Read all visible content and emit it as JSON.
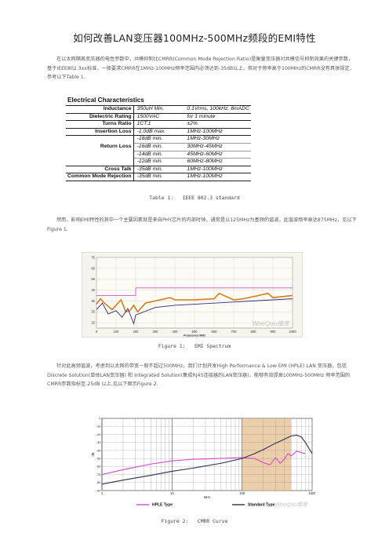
{
  "title": "如何改善LAN变压器100MHz-500MHz频段的EMI特性",
  "paragraphs": [
    "在以太网隔离变压器的电性参数中，共模抑制比CMRR(Common Mode Rejection Ratio)是衡量变压器对共模信号抑制效果的关键参数，基于IEEE802.3xx标准，一般要求CMRR在1MHz-100MHz频率范围内必须达到-35dB以上，但对于频率高于100MHz的CMRR没有具体规定，参考以下Table 1.",
    "然而，影响EMI特性的其中一个主要因素就是来自PHY芯片的内部时钟，通常是以125MHz为基频的谐波，此谐波频率高达875MHz，见以下Figure 1.",
    "针对此高频谐波，考虑到以太网的带宽一般不超过500MHz，我们计划开发High Performance & Low EMI (HPLE) LAN 变压器，包括Discrete Solution(单体LAN变压器) 和 Integrated Solution(集成RJ45连接器的LAN变压器)，能够有效提高100MHz-500MHz 频率范围的CMRR参数指标至-25dB 以上,见以下图示Figure 2."
  ],
  "table1": {
    "heading": "Electrical Characteristics",
    "rows": [
      {
        "label": "Inductance",
        "min": "350uH Min.",
        "cond": "0.1Vrms, 100kHz, 8mADC"
      },
      {
        "label": "Dielectric Rating",
        "min": "1500VAC",
        "cond": "for 1 minute"
      },
      {
        "label": "Turns Ratio",
        "min": "1CT:1",
        "cond": "±2%"
      },
      {
        "label": "Insertion Loss",
        "min": "-1.0dB max.",
        "cond": "1MHz-100MHz"
      },
      {
        "label": "",
        "min": "-18dB min.",
        "cond": "1MHz-30MHz"
      },
      {
        "label": "Return Loss",
        "min": "-16dB min.",
        "cond": "30MHz-45MHz"
      },
      {
        "label": "",
        "min": "-14dB min.",
        "cond": "45MHz-60MHz"
      },
      {
        "label": "",
        "min": "-12dB min.",
        "cond": "60MHz-80MHz"
      },
      {
        "label": "Cross Talk",
        "min": "-35dB min.",
        "cond": "1MHz-100MHz"
      },
      {
        "label": "Common Mode Rejection",
        "min": "-35dB min.",
        "cond": "1MHz-100MHz"
      }
    ],
    "caption": "Table 1:   IEEE 802.3 standard"
  },
  "figure1": {
    "caption": "Figure 1:   EMI Spectrum",
    "watermark": "WeeQoo维库",
    "chart_data": {
      "type": "line",
      "xlabel": "Frequency MHz",
      "x_ticks": [
        "0",
        "100",
        "200",
        "300",
        "400",
        "500",
        "600",
        "700",
        "800",
        "900",
        "1000"
      ],
      "y_ticks": [
        "75",
        "65",
        "55",
        "45",
        "35",
        "25",
        "15"
      ],
      "xlim": [
        0,
        1000
      ],
      "ylim": [
        10,
        75
      ],
      "series": [
        {
          "color": "#cc55cc",
          "x": [
            0,
            200,
            200,
            1000
          ],
          "y": [
            40,
            40,
            47,
            47
          ]
        },
        {
          "color": "#d97a1a",
          "x": [
            0,
            20,
            40,
            60,
            80,
            100,
            125,
            150,
            170,
            190,
            210,
            250,
            300,
            375,
            400,
            500,
            600,
            625,
            700,
            750,
            800,
            875,
            900,
            950,
            1000
          ],
          "y": [
            32,
            37,
            33,
            30,
            27,
            31,
            36,
            25,
            26,
            31,
            25,
            33,
            35,
            38,
            36,
            36,
            37,
            42,
            36,
            37,
            39,
            42,
            38,
            39,
            40
          ]
        },
        {
          "color": "#2d2d7a",
          "x": [
            0,
            30,
            60,
            100,
            130,
            160,
            190,
            200,
            300,
            400,
            500,
            600,
            700,
            800,
            900,
            1000
          ],
          "y": [
            27,
            33,
            23,
            26,
            20,
            28,
            14,
            22,
            29,
            31,
            32,
            33,
            34,
            35,
            36,
            37
          ]
        }
      ]
    }
  },
  "figure2": {
    "caption": "Figure 2:   CMRR Curve",
    "watermark": "WeeQoo维库",
    "chart_data": {
      "type": "line",
      "xlabel": "MHz",
      "ylabel": "dB",
      "x_scale": "log",
      "xlim": [
        1,
        1000
      ],
      "ylim": [
        -90,
        0
      ],
      "x_ticks": [
        "1",
        "10",
        "100",
        "1000"
      ],
      "y_ticks": [
        "0",
        "-10",
        "-20",
        "-30",
        "-40",
        "-50",
        "-60",
        "-70",
        "-80",
        "-90"
      ],
      "highlight_band": [
        100,
        500
      ],
      "legend": [
        "HPLE Type",
        "Standard Type"
      ],
      "series": [
        {
          "name": "HPLE Type",
          "color": "#dd44cc",
          "x": [
            1,
            2,
            5,
            10,
            20,
            50,
            100,
            150,
            200,
            250,
            300,
            350,
            400,
            450,
            500,
            600,
            800
          ],
          "y": [
            -70,
            -64,
            -57,
            -53,
            -51,
            -50,
            -49,
            -50,
            -55,
            -58,
            -49,
            -56,
            -51,
            -44,
            -47,
            -41,
            -44
          ]
        },
        {
          "name": "Standard Type",
          "color": "#2a2f55",
          "x": [
            1,
            2,
            5,
            10,
            20,
            50,
            100,
            150,
            200,
            300,
            400,
            500,
            600,
            700,
            800,
            1000
          ],
          "y": [
            -82,
            -77,
            -71,
            -66,
            -62,
            -56,
            -50,
            -44,
            -39,
            -31,
            -26,
            -22,
            -21,
            -23,
            -30,
            -44
          ]
        }
      ]
    }
  }
}
